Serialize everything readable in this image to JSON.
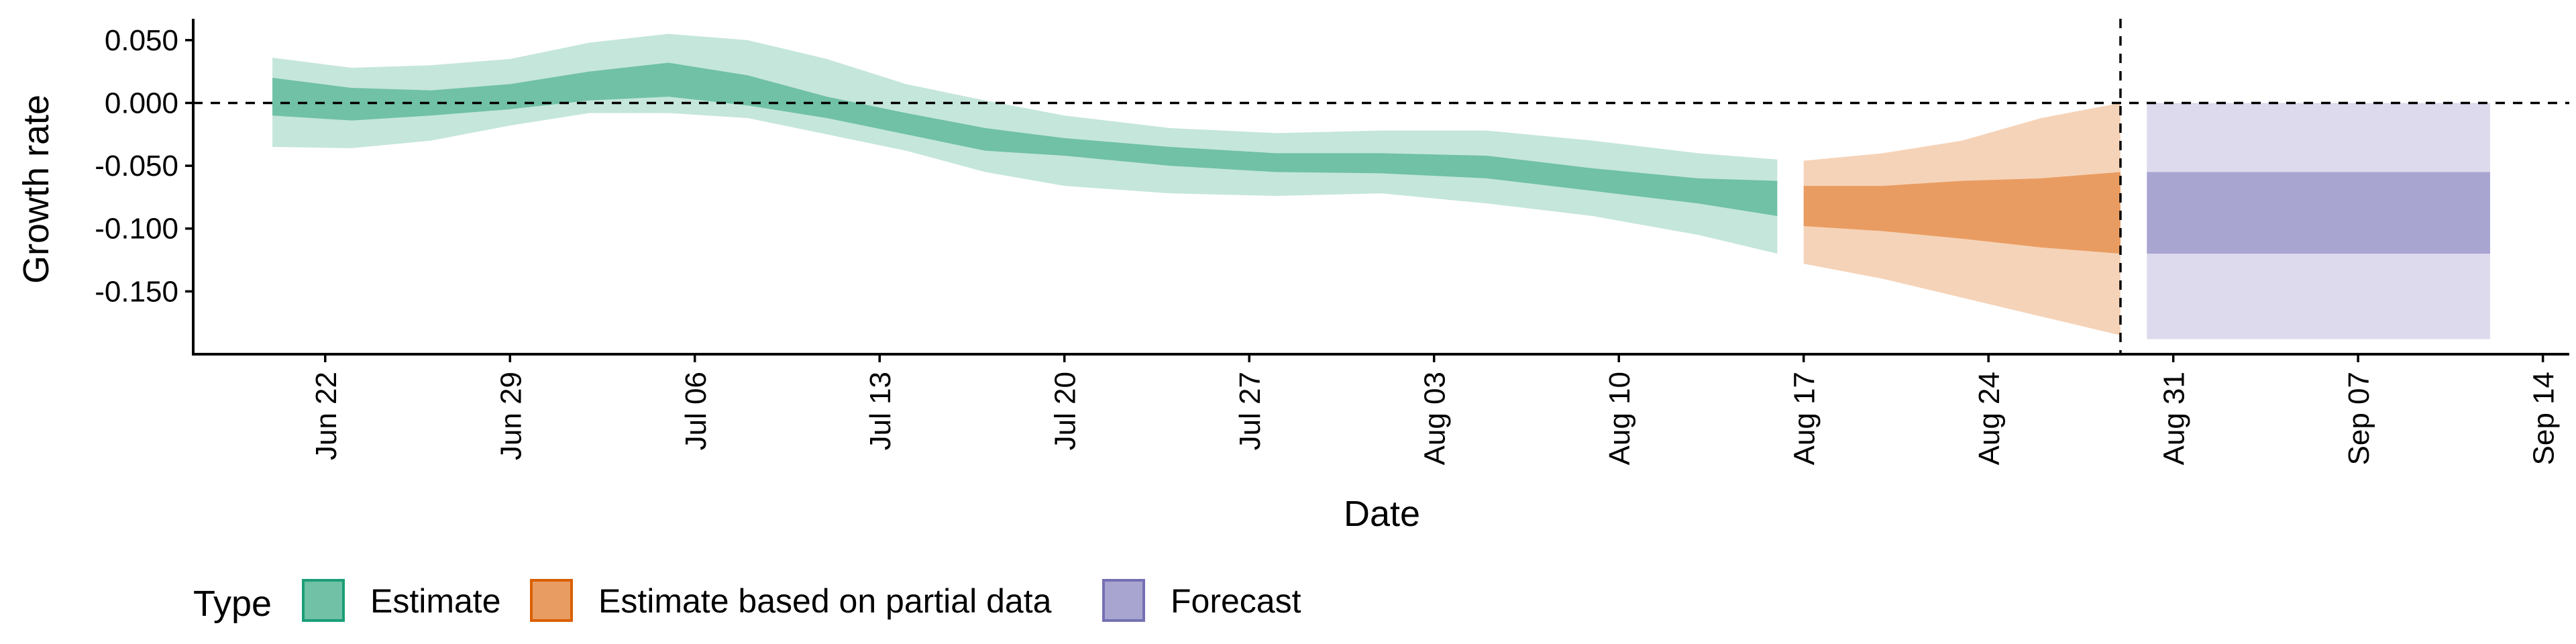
{
  "chart_data": {
    "type": "area",
    "title": "",
    "xlabel": "Date",
    "ylabel": "Growth rate",
    "x_range": [
      "2020-06-17",
      "2020-09-15"
    ],
    "y_range": [
      -0.2,
      0.067
    ],
    "x_ticks": [
      {
        "date": "2020-06-22",
        "label": "Jun 22"
      },
      {
        "date": "2020-06-29",
        "label": "Jun 29"
      },
      {
        "date": "2020-07-06",
        "label": "Jul 06"
      },
      {
        "date": "2020-07-13",
        "label": "Jul 13"
      },
      {
        "date": "2020-07-20",
        "label": "Jul 20"
      },
      {
        "date": "2020-07-27",
        "label": "Jul 27"
      },
      {
        "date": "2020-08-03",
        "label": "Aug 03"
      },
      {
        "date": "2020-08-10",
        "label": "Aug 10"
      },
      {
        "date": "2020-08-17",
        "label": "Aug 17"
      },
      {
        "date": "2020-08-24",
        "label": "Aug 24"
      },
      {
        "date": "2020-08-31",
        "label": "Aug 31"
      },
      {
        "date": "2020-09-07",
        "label": "Sep 07"
      },
      {
        "date": "2020-09-14",
        "label": "Sep 14"
      }
    ],
    "y_ticks": [
      {
        "value": 0.05,
        "label": "0.050"
      },
      {
        "value": 0.0,
        "label": "0.000"
      },
      {
        "value": -0.05,
        "label": "-0.050"
      },
      {
        "value": -0.1,
        "label": "-0.100"
      },
      {
        "value": -0.15,
        "label": "-0.150"
      }
    ],
    "reference_lines": {
      "horizontal_y": 0.0,
      "vertical_x": "2020-08-29"
    },
    "grid": false,
    "legend": {
      "position": "bottom-left",
      "title": "Type",
      "entries": [
        "Estimate",
        "Estimate based on partial data",
        "Forecast"
      ]
    },
    "colors": {
      "Estimate": {
        "inner": "#70c1a6",
        "outer": "#c5e6db",
        "border": "#1b9e77"
      },
      "Estimate based on partial data": {
        "inner": "#e99c61",
        "outer": "#f5d3b8",
        "border": "#d95f02"
      },
      "Forecast": {
        "inner": "#a9a5d1",
        "outer": "#dcdaec",
        "border": "#7570b3"
      }
    },
    "series": [
      {
        "name": "Estimate",
        "points": [
          {
            "date": "2020-06-20",
            "lo90": -0.035,
            "lo50": -0.01,
            "hi50": 0.02,
            "hi90": 0.036
          },
          {
            "date": "2020-06-23",
            "lo90": -0.036,
            "lo50": -0.014,
            "hi50": 0.012,
            "hi90": 0.028
          },
          {
            "date": "2020-06-26",
            "lo90": -0.03,
            "lo50": -0.01,
            "hi50": 0.01,
            "hi90": 0.03
          },
          {
            "date": "2020-06-29",
            "lo90": -0.018,
            "lo50": -0.005,
            "hi50": 0.015,
            "hi90": 0.035
          },
          {
            "date": "2020-07-02",
            "lo90": -0.008,
            "lo50": 0.002,
            "hi50": 0.025,
            "hi90": 0.048
          },
          {
            "date": "2020-07-05",
            "lo90": -0.008,
            "lo50": 0.005,
            "hi50": 0.032,
            "hi90": 0.055
          },
          {
            "date": "2020-07-08",
            "lo90": -0.012,
            "lo50": -0.002,
            "hi50": 0.022,
            "hi90": 0.05
          },
          {
            "date": "2020-07-11",
            "lo90": -0.025,
            "lo50": -0.012,
            "hi50": 0.005,
            "hi90": 0.035
          },
          {
            "date": "2020-07-14",
            "lo90": -0.038,
            "lo50": -0.025,
            "hi50": -0.008,
            "hi90": 0.015
          },
          {
            "date": "2020-07-17",
            "lo90": -0.055,
            "lo50": -0.038,
            "hi50": -0.02,
            "hi90": 0.002
          },
          {
            "date": "2020-07-20",
            "lo90": -0.066,
            "lo50": -0.042,
            "hi50": -0.028,
            "hi90": -0.01
          },
          {
            "date": "2020-07-24",
            "lo90": -0.072,
            "lo50": -0.05,
            "hi50": -0.035,
            "hi90": -0.02
          },
          {
            "date": "2020-07-28",
            "lo90": -0.074,
            "lo50": -0.055,
            "hi50": -0.04,
            "hi90": -0.024
          },
          {
            "date": "2020-08-01",
            "lo90": -0.072,
            "lo50": -0.056,
            "hi50": -0.04,
            "hi90": -0.022
          },
          {
            "date": "2020-08-05",
            "lo90": -0.08,
            "lo50": -0.06,
            "hi50": -0.042,
            "hi90": -0.022
          },
          {
            "date": "2020-08-09",
            "lo90": -0.09,
            "lo50": -0.07,
            "hi50": -0.052,
            "hi90": -0.03
          },
          {
            "date": "2020-08-13",
            "lo90": -0.105,
            "lo50": -0.08,
            "hi50": -0.06,
            "hi90": -0.04
          },
          {
            "date": "2020-08-16",
            "lo90": -0.12,
            "lo50": -0.09,
            "hi50": -0.062,
            "hi90": -0.045
          }
        ]
      },
      {
        "name": "Estimate based on partial data",
        "points": [
          {
            "date": "2020-08-17",
            "lo90": -0.128,
            "lo50": -0.098,
            "hi50": -0.066,
            "hi90": -0.046
          },
          {
            "date": "2020-08-20",
            "lo90": -0.14,
            "lo50": -0.102,
            "hi50": -0.066,
            "hi90": -0.04
          },
          {
            "date": "2020-08-23",
            "lo90": -0.155,
            "lo50": -0.108,
            "hi50": -0.062,
            "hi90": -0.03
          },
          {
            "date": "2020-08-26",
            "lo90": -0.17,
            "lo50": -0.115,
            "hi50": -0.06,
            "hi90": -0.012
          },
          {
            "date": "2020-08-29",
            "lo90": -0.185,
            "lo50": -0.12,
            "hi50": -0.055,
            "hi90": 0.0
          }
        ]
      },
      {
        "name": "Forecast",
        "points": [
          {
            "date": "2020-08-30",
            "lo90": -0.188,
            "lo50": -0.12,
            "hi50": -0.055,
            "hi90": 0.0
          },
          {
            "date": "2020-09-12",
            "lo90": -0.188,
            "lo50": -0.12,
            "hi50": -0.055,
            "hi90": 0.0
          }
        ]
      }
    ]
  }
}
